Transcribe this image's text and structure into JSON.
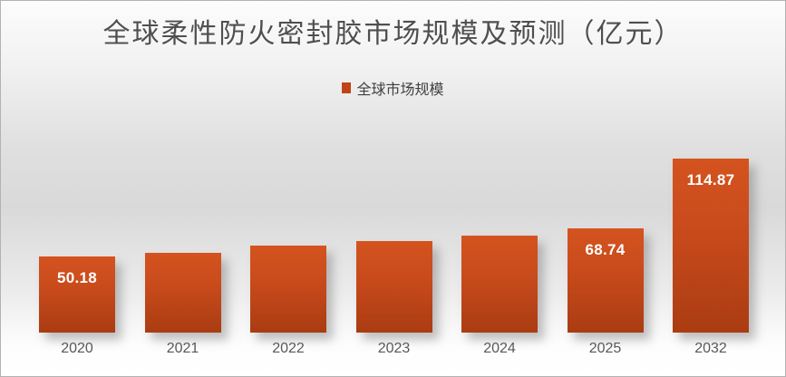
{
  "chart_data": {
    "type": "bar",
    "title": "全球柔性防火密封胶市场规模及预测（亿元）",
    "legend_entries": [
      {
        "label": "全球市场规模"
      }
    ],
    "legend_position": "top-center",
    "categories": [
      "2020",
      "2021",
      "2022",
      "2023",
      "2024",
      "2025",
      "2032"
    ],
    "series": [
      {
        "name": "全球市场规模",
        "values": [
          50.18,
          52.6,
          57.6,
          60.4,
          64.0,
          68.74,
          114.87
        ]
      }
    ],
    "data_labels": [
      "50.18",
      "",
      "",
      "",
      "",
      "68.74",
      "114.87"
    ],
    "xlabel": "",
    "ylabel": "",
    "ylim": [
      0,
      120
    ],
    "grid": false,
    "axes_hidden": true,
    "colors": {
      "bar_gradient_top": "#d4531f",
      "bar_gradient_bottom": "#aa3c12",
      "legend_swatch": "#c04318",
      "title_text": "#4f4f4f",
      "category_text": "#595959",
      "value_label_text": "#ffffff",
      "background_mid": "#d9d9d9",
      "frame_border": "#b2b2b2"
    }
  }
}
